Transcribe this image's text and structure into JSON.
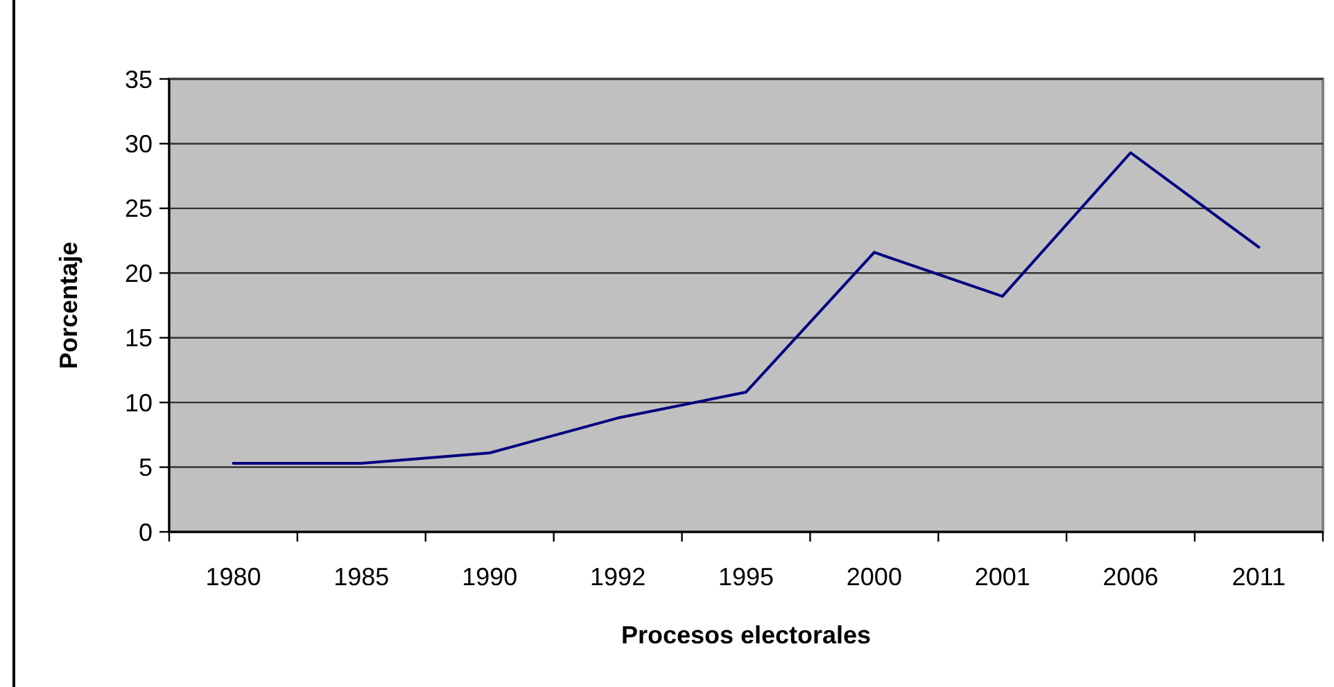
{
  "chart_data": {
    "type": "line",
    "xlabel": "Procesos electorales",
    "ylabel": "Porcentaje",
    "categories": [
      "1980",
      "1985",
      "1990",
      "1992",
      "1995",
      "2000",
      "2001",
      "2006",
      "2011"
    ],
    "series": [
      {
        "color": "#000080",
        "values": [
          5.3,
          5.3,
          6.1,
          8.8,
          10.8,
          21.6,
          18.2,
          29.3,
          22.0
        ]
      }
    ],
    "ylim": [
      0,
      35
    ],
    "yticks": [
      0,
      5,
      10,
      15,
      20,
      25,
      30,
      35
    ],
    "grid": "y"
  }
}
